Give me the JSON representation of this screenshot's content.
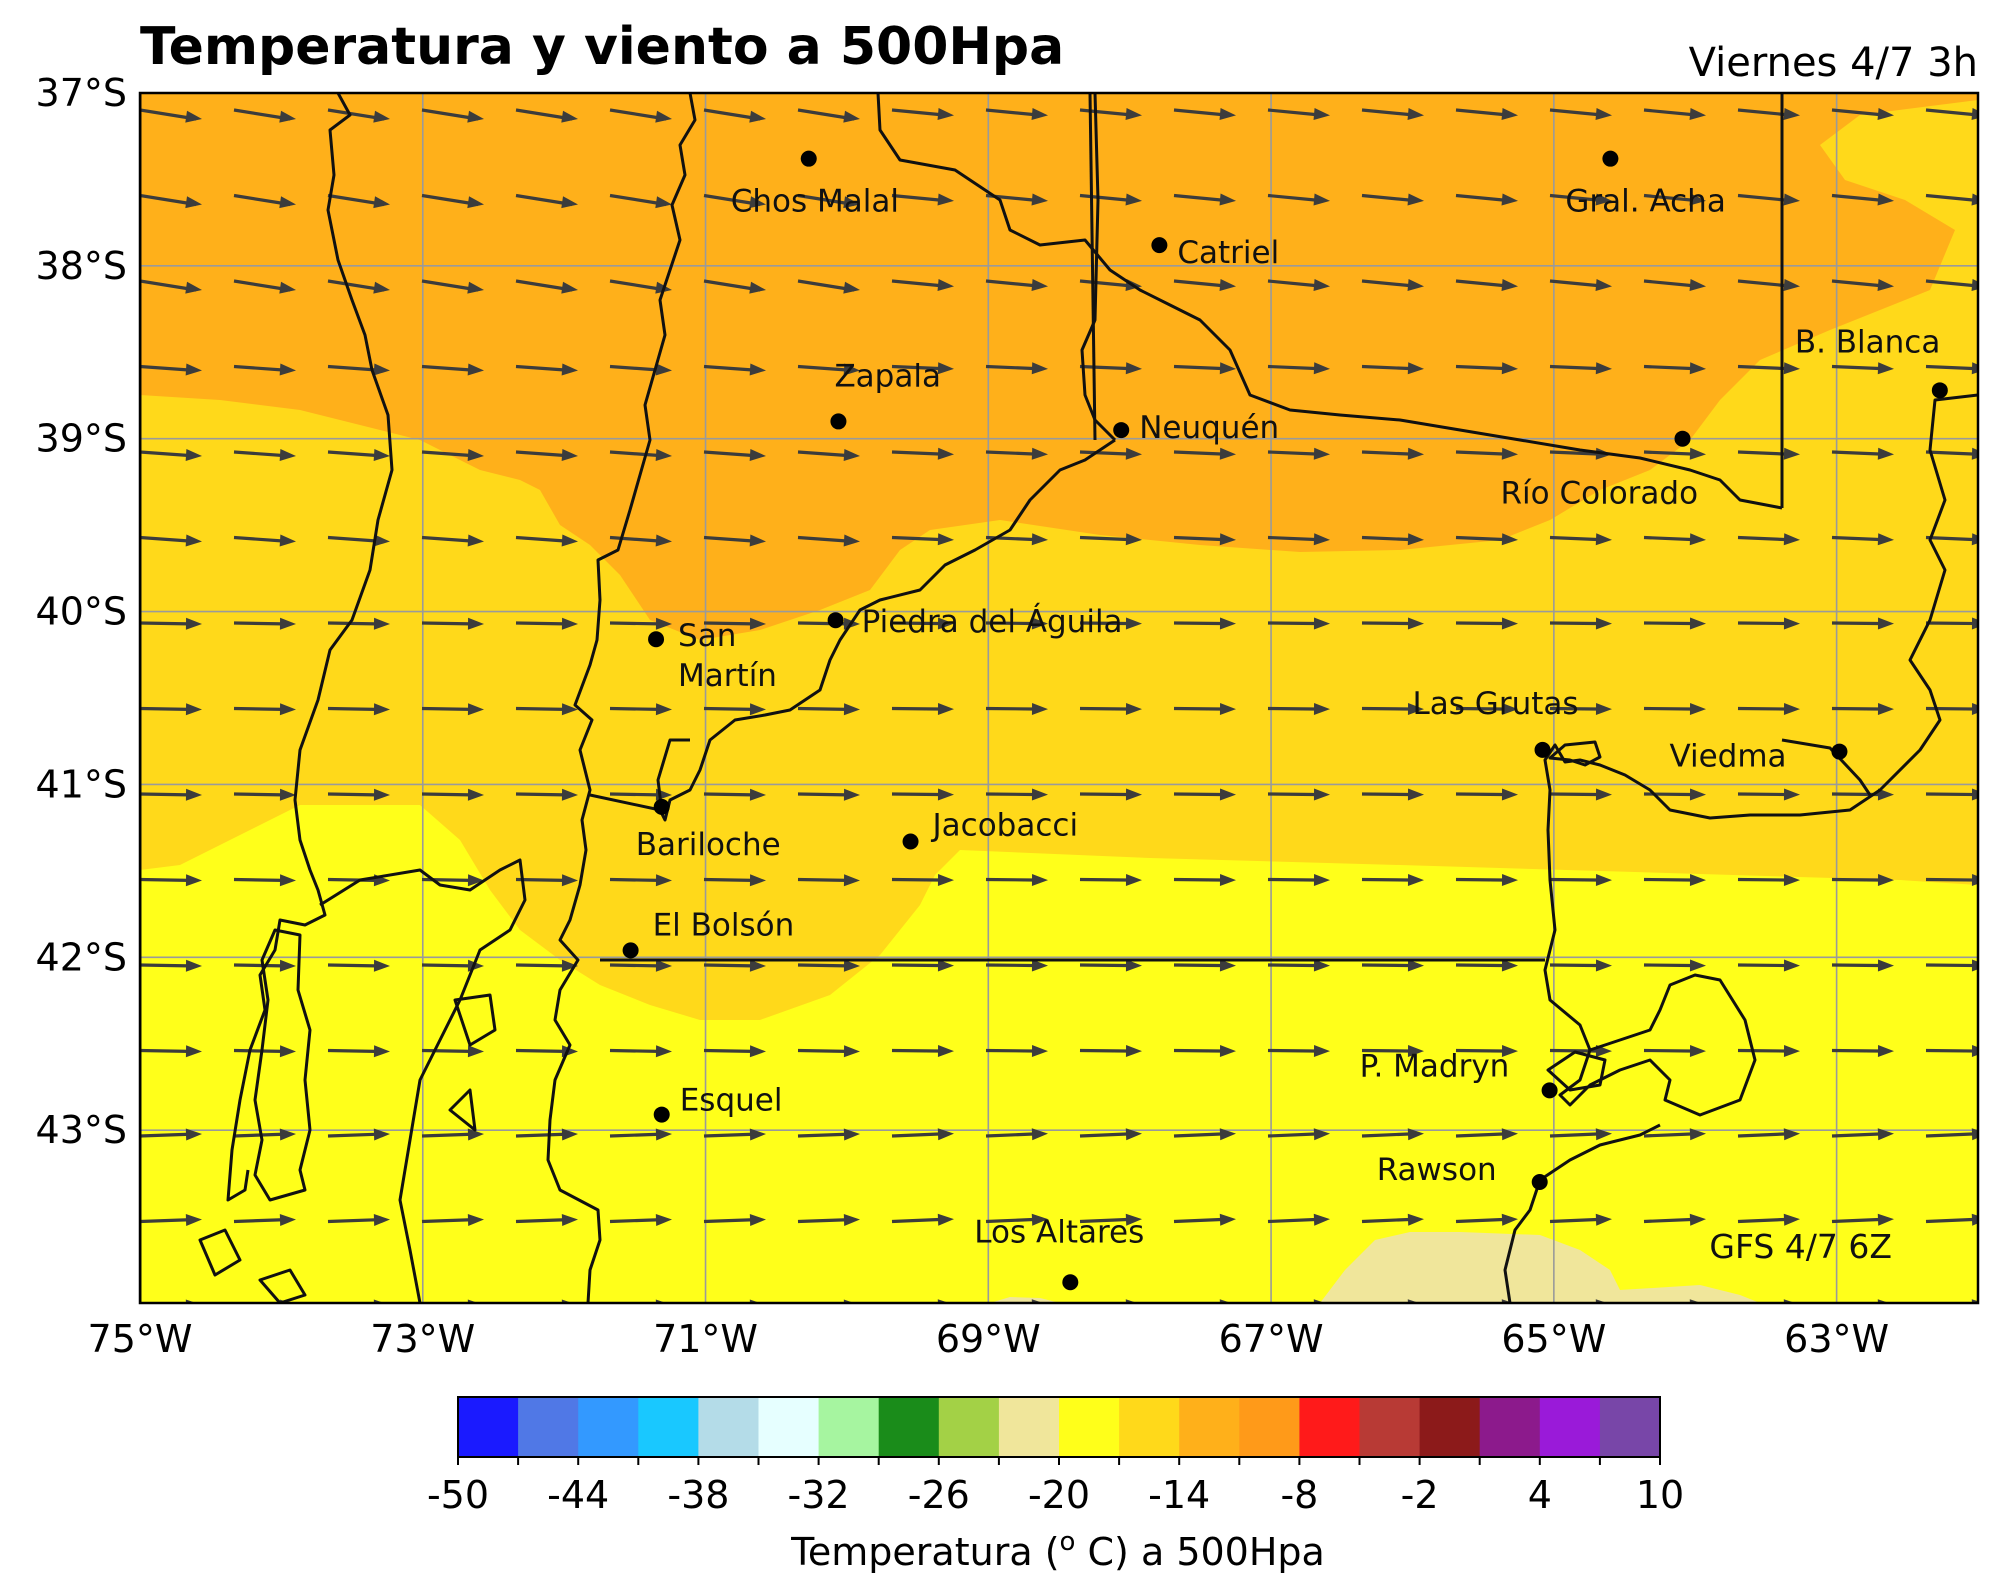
{
  "title": "Temperatura y viento a 500Hpa",
  "valid_time": "Viernes 4/7 3h",
  "model_run": "GFS 4/7 6Z",
  "map": {
    "lon_range": [
      -75,
      -62
    ],
    "lat_range": [
      -44,
      -37
    ],
    "lat_ticks": [
      {
        "value": -37,
        "label": "37°S"
      },
      {
        "value": -38,
        "label": "38°S"
      },
      {
        "value": -39,
        "label": "39°S"
      },
      {
        "value": -40,
        "label": "40°S"
      },
      {
        "value": -41,
        "label": "41°S"
      },
      {
        "value": -42,
        "label": "42°S"
      },
      {
        "value": -43,
        "label": "43°S"
      }
    ],
    "lon_ticks": [
      {
        "value": -75,
        "label": "75°W"
      },
      {
        "value": -73,
        "label": "73°W"
      },
      {
        "value": -71,
        "label": "71°W"
      },
      {
        "value": -69,
        "label": "69°W"
      },
      {
        "value": -67,
        "label": "67°W"
      },
      {
        "value": -65,
        "label": "65°W"
      },
      {
        "value": -63,
        "label": "63°W"
      }
    ],
    "cities": [
      {
        "name": "Chos Malal",
        "lon": -70.27,
        "lat": -37.38
      },
      {
        "name": "Gral. Acha",
        "lon": -64.6,
        "lat": -37.38
      },
      {
        "name": "Catriel",
        "lon": -67.79,
        "lat": -37.88
      },
      {
        "name": "Zapala",
        "lon": -70.06,
        "lat": -38.9
      },
      {
        "name": "Neuquén",
        "lon": -68.06,
        "lat": -38.95
      },
      {
        "name": "B. Blanca",
        "lon": -62.27,
        "lat": -38.72
      },
      {
        "name": "Río Colorado",
        "lon": -64.09,
        "lat": -39.0
      },
      {
        "name": "San Martín",
        "lon": -71.35,
        "lat": -40.16
      },
      {
        "name": "Piedra del Águila",
        "lon": -70.08,
        "lat": -40.05
      },
      {
        "name": "Las Grutas",
        "lon": -65.08,
        "lat": -40.8
      },
      {
        "name": "Viedma",
        "lon": -62.98,
        "lat": -40.81
      },
      {
        "name": "Bariloche",
        "lon": -71.31,
        "lat": -41.13
      },
      {
        "name": "Jacobacci",
        "lon": -69.55,
        "lat": -41.33
      },
      {
        "name": "El Bolsón",
        "lon": -71.53,
        "lat": -41.96
      },
      {
        "name": "P. Madryn",
        "lon": -65.03,
        "lat": -42.77
      },
      {
        "name": "Esquel",
        "lon": -71.31,
        "lat": -42.91
      },
      {
        "name": "Rawson",
        "lon": -65.1,
        "lat": -43.3
      },
      {
        "name": "Los Altares",
        "lon": -68.42,
        "lat": -43.88
      }
    ]
  },
  "colorbar": {
    "label": "Temperatura (o C) a 500Hpa",
    "label_parts": {
      "before": "Temperatura (",
      "sup": "o",
      "after": " C) a 500Hpa"
    },
    "levels": [
      -50,
      -47,
      -44,
      -41,
      -38,
      -35,
      -32,
      -29,
      -26,
      -23,
      -20,
      -17,
      -14,
      -11,
      -8,
      -5,
      -2,
      1,
      4,
      7,
      10
    ],
    "colors": [
      "#1a1aff",
      "#5078e6",
      "#3399ff",
      "#19c8ff",
      "#b4dce8",
      "#e6ffff",
      "#a6f5a0",
      "#1a8c1a",
      "#a3d146",
      "#f0e69b",
      "#ffff1a",
      "#ffd91a",
      "#ffb01a",
      "#ff9a19",
      "#ff1a1a",
      "#b83a35",
      "#8c1a1a",
      "#8c1a8c",
      "#9a1ad9",
      "#7846a8"
    ],
    "tick_labels": [
      "-50",
      "-44",
      "-38",
      "-32",
      "-26",
      "-20",
      "-14",
      "-8",
      "-2",
      "4",
      "10"
    ]
  },
  "temperature_field": {
    "fill_colors": {
      "-17 to -14": "#ffb01a",
      "-20 to -17": "#ffd91a",
      "-23 to -20": "#ffff1a",
      "-26 to -23": "#f0e69b"
    }
  },
  "wind": {
    "direction": "west to east",
    "arrow_color": "#3c3c3c"
  }
}
